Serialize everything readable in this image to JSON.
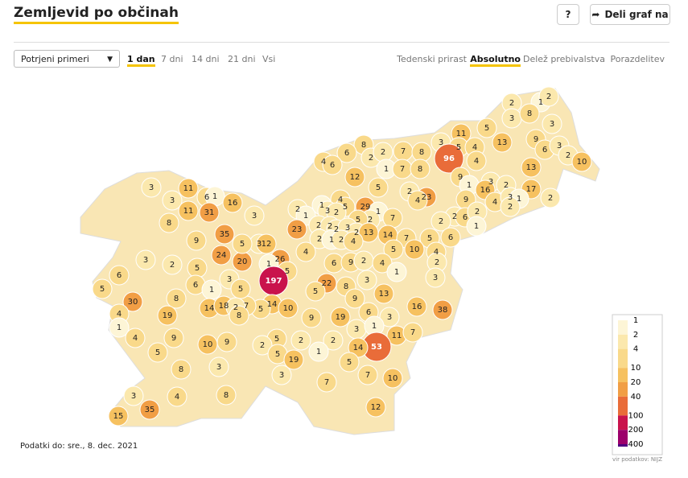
{
  "header": {
    "title": "Zemljevid po občinah",
    "help": "?",
    "share": "Deli graf na"
  },
  "controls": {
    "select": "Potrjeni primeri",
    "periods": [
      {
        "label": "1 dan",
        "active": true
      },
      {
        "label": "7 dni",
        "active": false
      },
      {
        "label": "14 dni",
        "active": false
      },
      {
        "label": "21 dni",
        "active": false
      },
      {
        "label": "Vsi",
        "active": false
      }
    ],
    "modes": [
      {
        "label": "Tedenski prirast",
        "active": false
      },
      {
        "label": "Absolutno",
        "active": true
      },
      {
        "label": "Delež prebivalstva",
        "active": false
      },
      {
        "label": "Porazdelitev",
        "active": false
      }
    ]
  },
  "map": {
    "municipality_values": [
      2,
      1,
      2,
      3,
      8,
      3,
      5,
      11,
      13,
      9,
      3,
      5,
      4,
      6,
      3,
      2,
      10,
      96,
      4,
      13,
      9,
      1,
      3,
      16,
      2,
      17,
      2,
      4,
      3,
      1,
      2,
      9,
      2,
      6,
      2,
      1,
      8,
      6,
      4,
      6,
      2,
      2,
      7,
      8,
      1,
      7,
      8,
      12,
      5,
      23,
      2,
      4,
      2,
      2,
      1,
      4,
      1,
      3,
      5,
      2,
      29,
      1,
      7,
      2,
      5,
      2,
      23,
      2,
      2,
      3,
      2,
      13,
      14,
      7,
      5,
      6,
      2,
      1,
      2,
      4,
      5,
      10,
      4,
      3,
      12,
      4,
      26,
      6,
      9,
      2,
      4,
      1,
      2,
      20,
      1,
      5,
      197,
      22,
      3,
      8,
      13,
      3,
      5,
      14,
      10,
      5,
      7,
      9,
      16,
      38,
      6,
      3,
      19,
      9,
      3,
      1,
      11,
      7,
      53,
      14,
      2,
      2,
      5,
      2,
      5,
      19,
      5,
      3,
      7,
      7,
      10,
      12,
      1,
      3,
      11,
      6,
      1,
      16,
      3,
      11,
      31,
      8,
      3,
      35,
      9,
      5,
      24,
      3,
      2,
      5,
      6,
      5,
      3,
      6,
      1,
      5,
      30,
      8,
      4,
      14,
      18,
      2,
      8,
      19,
      1,
      9,
      4,
      10,
      9,
      5,
      8,
      3,
      8,
      3,
      4,
      35,
      15
    ]
  },
  "legend": {
    "ticks": [
      1,
      2,
      4,
      10,
      20,
      40,
      100,
      200,
      400
    ],
    "colors": [
      "#fdf5d6",
      "#fbe8ad",
      "#f9d98a",
      "#f6c160",
      "#f19e45",
      "#e96c39",
      "#c9134c",
      "#9c006b",
      "#4f0080"
    ],
    "log": true,
    "source": "vir podatkov: NIJZ"
  },
  "footer": {
    "date": "Podatki do: sre., 8. dec. 2021"
  }
}
